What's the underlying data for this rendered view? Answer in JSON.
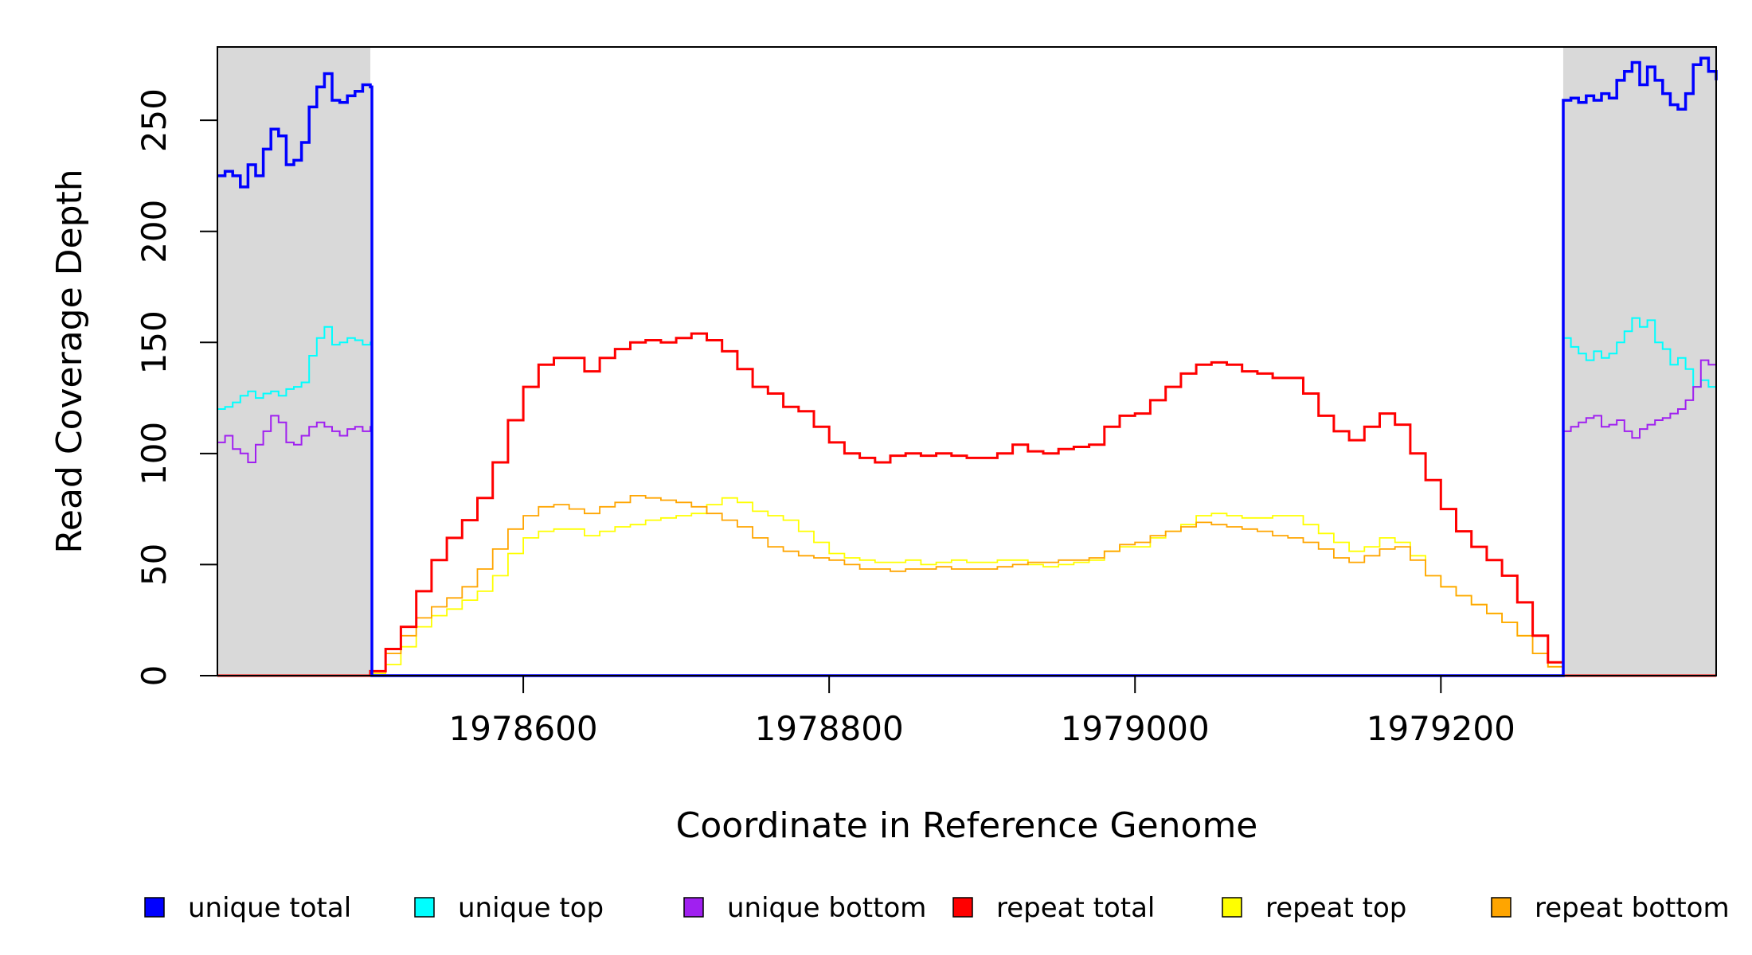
{
  "chart_data": {
    "type": "line",
    "title": "",
    "xlabel": "Coordinate in Reference Genome",
    "ylabel": "Read Coverage Depth",
    "xlim": [
      1978400,
      1979380
    ],
    "ylim": [
      0,
      283
    ],
    "x_ticks": [
      1978600,
      1978800,
      1979000,
      1979200
    ],
    "y_ticks": [
      0,
      50,
      100,
      150,
      200,
      250
    ],
    "repeat_region": [
      1978500,
      1979280
    ],
    "shaded_regions": [
      [
        1978400,
        1978500
      ],
      [
        1979280,
        1979380
      ]
    ],
    "grid": false,
    "legend_position": "bottom",
    "series": [
      {
        "name": "unique total",
        "color": "#0000FF",
        "x": [
          1978400,
          1978405,
          1978410,
          1978415,
          1978420,
          1978425,
          1978430,
          1978435,
          1978440,
          1978445,
          1978450,
          1978455,
          1978460,
          1978465,
          1978470,
          1978475,
          1978480,
          1978485,
          1978490,
          1978495,
          1978500,
          1978501,
          1979279,
          1979280,
          1979285,
          1979290,
          1979295,
          1979300,
          1979305,
          1979310,
          1979315,
          1979320,
          1979325,
          1979330,
          1979335,
          1979340,
          1979345,
          1979350,
          1979355,
          1979360,
          1979365,
          1979370,
          1979375,
          1979380
        ],
        "values": [
          225,
          227,
          225,
          220,
          230,
          225,
          237,
          246,
          243,
          230,
          232,
          240,
          256,
          265,
          271,
          259,
          258,
          261,
          263,
          266,
          265,
          0,
          0,
          259,
          260,
          258,
          261,
          259,
          262,
          260,
          268,
          272,
          276,
          266,
          274,
          268,
          262,
          257,
          255,
          262,
          275,
          278,
          272,
          268
        ]
      },
      {
        "name": "unique top",
        "color": "#00FFFF",
        "x": [
          1978400,
          1978405,
          1978410,
          1978415,
          1978420,
          1978425,
          1978430,
          1978435,
          1978440,
          1978445,
          1978450,
          1978455,
          1978460,
          1978465,
          1978470,
          1978475,
          1978480,
          1978485,
          1978490,
          1978495,
          1978500,
          1978501,
          1979279,
          1979280,
          1979285,
          1979290,
          1979295,
          1979300,
          1979305,
          1979310,
          1979315,
          1979320,
          1979325,
          1979330,
          1979335,
          1979340,
          1979345,
          1979350,
          1979355,
          1979360,
          1979365,
          1979370,
          1979375,
          1979380
        ],
        "values": [
          120,
          121,
          123,
          126,
          128,
          125,
          127,
          128,
          126,
          129,
          130,
          132,
          144,
          152,
          157,
          149,
          150,
          152,
          151,
          149,
          150,
          0,
          0,
          152,
          148,
          145,
          142,
          146,
          143,
          145,
          150,
          155,
          161,
          157,
          160,
          150,
          147,
          140,
          143,
          138,
          130,
          133,
          130,
          128
        ]
      },
      {
        "name": "unique bottom",
        "color": "#A020F0",
        "x": [
          1978400,
          1978405,
          1978410,
          1978415,
          1978420,
          1978425,
          1978430,
          1978435,
          1978440,
          1978445,
          1978450,
          1978455,
          1978460,
          1978465,
          1978470,
          1978475,
          1978480,
          1978485,
          1978490,
          1978495,
          1978500,
          1978501,
          1979279,
          1979280,
          1979285,
          1979290,
          1979295,
          1979300,
          1979305,
          1979310,
          1979315,
          1979320,
          1979325,
          1979330,
          1979335,
          1979340,
          1979345,
          1979350,
          1979355,
          1979360,
          1979365,
          1979370,
          1979375,
          1979380
        ],
        "values": [
          105,
          108,
          102,
          100,
          96,
          104,
          110,
          117,
          114,
          105,
          104,
          108,
          112,
          114,
          112,
          110,
          108,
          111,
          112,
          110,
          112,
          0,
          0,
          110,
          112,
          114,
          116,
          117,
          112,
          113,
          115,
          110,
          107,
          111,
          113,
          115,
          116,
          118,
          120,
          124,
          130,
          142,
          140,
          138
        ]
      },
      {
        "name": "repeat total",
        "color": "#FF0000",
        "x": [
          1978500,
          1978510,
          1978520,
          1978530,
          1978540,
          1978550,
          1978560,
          1978570,
          1978580,
          1978590,
          1978600,
          1978610,
          1978620,
          1978630,
          1978640,
          1978650,
          1978660,
          1978670,
          1978680,
          1978690,
          1978700,
          1978710,
          1978720,
          1978730,
          1978740,
          1978750,
          1978760,
          1978770,
          1978780,
          1978790,
          1978800,
          1978810,
          1978820,
          1978830,
          1978840,
          1978850,
          1978860,
          1978870,
          1978880,
          1978890,
          1978900,
          1978910,
          1978920,
          1978930,
          1978940,
          1978950,
          1978960,
          1978970,
          1978980,
          1978990,
          1979000,
          1979010,
          1979020,
          1979030,
          1979040,
          1979050,
          1979060,
          1979070,
          1979080,
          1979090,
          1979100,
          1979110,
          1979120,
          1979130,
          1979140,
          1979150,
          1979160,
          1979170,
          1979180,
          1979190,
          1979200,
          1979210,
          1979220,
          1979230,
          1979240,
          1979250,
          1979260,
          1979270,
          1979280
        ],
        "values": [
          2,
          12,
          22,
          38,
          52,
          62,
          70,
          80,
          96,
          115,
          130,
          140,
          143,
          143,
          137,
          143,
          147,
          150,
          151,
          150,
          152,
          154,
          151,
          146,
          138,
          130,
          127,
          121,
          119,
          112,
          105,
          100,
          98,
          96,
          99,
          100,
          99,
          100,
          99,
          98,
          98,
          100,
          104,
          101,
          100,
          102,
          103,
          104,
          112,
          117,
          118,
          124,
          130,
          136,
          140,
          141,
          140,
          137,
          136,
          134,
          134,
          127,
          117,
          110,
          106,
          112,
          118,
          113,
          100,
          88,
          75,
          65,
          58,
          52,
          45,
          33,
          18,
          6,
          1
        ]
      },
      {
        "name": "repeat top",
        "color": "#FFFF00",
        "x": [
          1978500,
          1978510,
          1978520,
          1978530,
          1978540,
          1978550,
          1978560,
          1978570,
          1978580,
          1978590,
          1978600,
          1978610,
          1978620,
          1978630,
          1978640,
          1978650,
          1978660,
          1978670,
          1978680,
          1978690,
          1978700,
          1978710,
          1978720,
          1978730,
          1978740,
          1978750,
          1978760,
          1978770,
          1978780,
          1978790,
          1978800,
          1978810,
          1978820,
          1978830,
          1978840,
          1978850,
          1978860,
          1978870,
          1978880,
          1978890,
          1978900,
          1978910,
          1978920,
          1978930,
          1978940,
          1978950,
          1978960,
          1978970,
          1978980,
          1978990,
          1979000,
          1979010,
          1979020,
          1979030,
          1979040,
          1979050,
          1979060,
          1979070,
          1979080,
          1979090,
          1979100,
          1979110,
          1979120,
          1979130,
          1979140,
          1979150,
          1979160,
          1979170,
          1979180,
          1979190,
          1979200,
          1979210,
          1979220,
          1979230,
          1979240,
          1979250,
          1979260,
          1979270,
          1979280
        ],
        "values": [
          1,
          5,
          13,
          22,
          27,
          30,
          34,
          38,
          45,
          55,
          62,
          65,
          66,
          66,
          63,
          65,
          67,
          68,
          70,
          71,
          72,
          73,
          77,
          80,
          78,
          74,
          72,
          70,
          65,
          60,
          55,
          53,
          52,
          51,
          51,
          52,
          50,
          51,
          52,
          51,
          51,
          52,
          52,
          50,
          49,
          50,
          51,
          52,
          56,
          58,
          58,
          62,
          65,
          68,
          72,
          73,
          72,
          71,
          71,
          72,
          72,
          68,
          64,
          60,
          56,
          58,
          62,
          60,
          54,
          45,
          40,
          36,
          32,
          28,
          24,
          18,
          10,
          4,
          1
        ]
      },
      {
        "name": "repeat bottom",
        "color": "#FFA500",
        "x": [
          1978500,
          1978510,
          1978520,
          1978530,
          1978540,
          1978550,
          1978560,
          1978570,
          1978580,
          1978590,
          1978600,
          1978610,
          1978620,
          1978630,
          1978640,
          1978650,
          1978660,
          1978670,
          1978680,
          1978690,
          1978700,
          1978710,
          1978720,
          1978730,
          1978740,
          1978750,
          1978760,
          1978770,
          1978780,
          1978790,
          1978800,
          1978810,
          1978820,
          1978830,
          1978840,
          1978850,
          1978860,
          1978870,
          1978880,
          1978890,
          1978900,
          1978910,
          1978920,
          1978930,
          1978940,
          1978950,
          1978960,
          1978970,
          1978980,
          1978990,
          1979000,
          1979010,
          1979020,
          1979030,
          1979040,
          1979050,
          1979060,
          1979070,
          1979080,
          1979090,
          1979100,
          1979110,
          1979120,
          1979130,
          1979140,
          1979150,
          1979160,
          1979170,
          1979180,
          1979190,
          1979200,
          1979210,
          1979220,
          1979230,
          1979240,
          1979250,
          1979260,
          1979270,
          1979280
        ],
        "values": [
          2,
          10,
          18,
          26,
          31,
          35,
          40,
          48,
          57,
          66,
          72,
          76,
          77,
          75,
          73,
          76,
          78,
          81,
          80,
          79,
          78,
          76,
          73,
          70,
          67,
          62,
          58,
          56,
          54,
          53,
          52,
          50,
          48,
          48,
          47,
          48,
          48,
          49,
          48,
          48,
          48,
          49,
          50,
          51,
          51,
          52,
          52,
          53,
          56,
          59,
          60,
          63,
          65,
          67,
          69,
          68,
          67,
          66,
          65,
          63,
          62,
          60,
          57,
          53,
          51,
          54,
          57,
          58,
          52,
          45,
          40,
          36,
          32,
          28,
          24,
          18,
          10,
          4,
          1
        ]
      }
    ]
  }
}
